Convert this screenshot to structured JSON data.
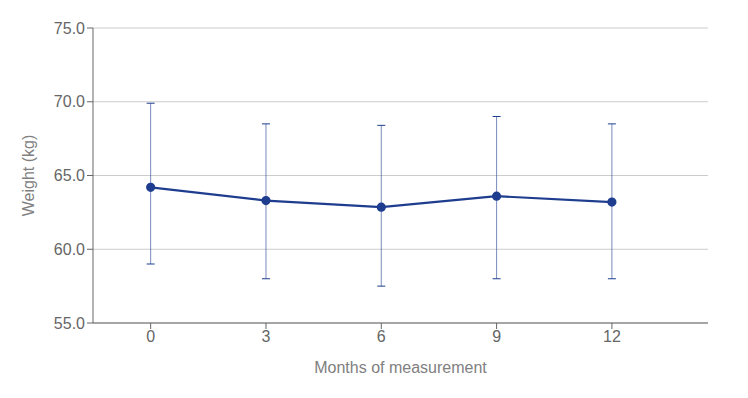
{
  "chart_data": {
    "type": "line",
    "x": [
      0,
      3,
      6,
      9,
      12
    ],
    "values": [
      64.2,
      63.3,
      62.85,
      63.6,
      63.2
    ],
    "y_upper": [
      69.9,
      68.5,
      68.4,
      69.0,
      68.5
    ],
    "y_lower": [
      59.0,
      58.0,
      57.5,
      58.0,
      58.0
    ],
    "xlabel": "Months of measurement",
    "ylabel": "Weight (kg)",
    "xlim": [
      -1.5,
      14.5
    ],
    "xticks": [
      0,
      3,
      6,
      9,
      12
    ],
    "ylim": [
      55.0,
      75.0
    ],
    "yticks": [
      {
        "value": 55,
        "label": "55.0"
      },
      {
        "value": 60,
        "label": "60.0"
      },
      {
        "value": 65,
        "label": "65.0"
      },
      {
        "value": 70,
        "label": "70.0"
      },
      {
        "value": 75,
        "label": "75.0"
      }
    ],
    "grid": true,
    "color": "#1e3d8f",
    "marker": "circle",
    "line_style": "solid"
  }
}
